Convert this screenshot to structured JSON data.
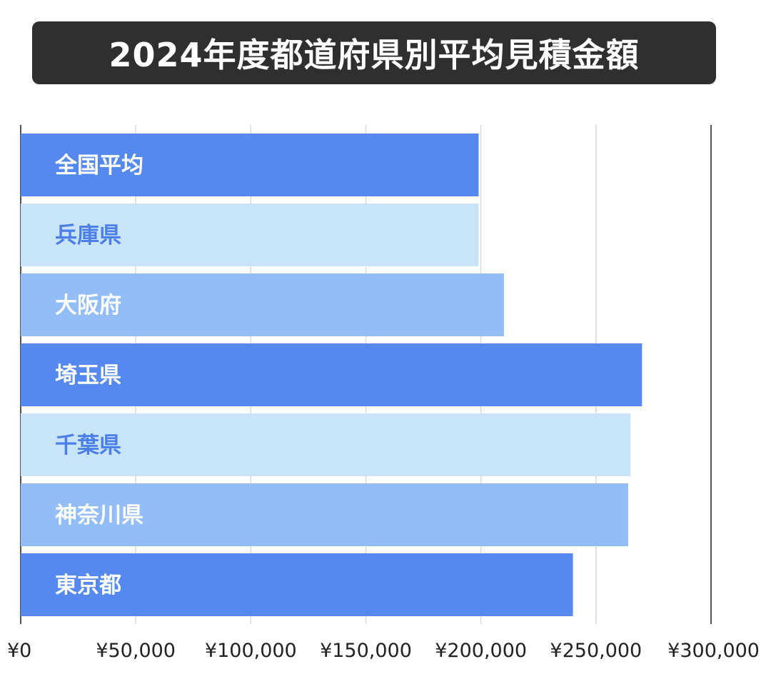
{
  "title": "2024年度都道府県別平均見積金額",
  "chart_data": {
    "type": "bar",
    "orientation": "horizontal",
    "categories": [
      "全国平均",
      "兵庫県",
      "大阪府",
      "埼玉県",
      "千葉県",
      "神奈川県",
      "東京都"
    ],
    "values": [
      199000,
      199000,
      210000,
      270000,
      265000,
      264000,
      240000
    ],
    "bar_colors": [
      "#5589f0",
      "#c8e4f8",
      "#93bdf7",
      "#5589f0",
      "#c8e4f8",
      "#93bdf7",
      "#5589f0"
    ],
    "label_colors": [
      "#ffffff",
      "#4c80e8",
      "#ffffff",
      "#ffffff",
      "#4c80e8",
      "#ffffff",
      "#ffffff"
    ],
    "xlim": [
      0,
      300000
    ],
    "x_ticks": [
      0,
      50000,
      100000,
      150000,
      200000,
      250000,
      300000
    ],
    "x_tick_labels": [
      "¥0",
      "¥50,000",
      "¥100,000",
      "¥150,000",
      "¥200,000",
      "¥250,000",
      "¥300,000"
    ],
    "grid": true,
    "legend": "none"
  }
}
